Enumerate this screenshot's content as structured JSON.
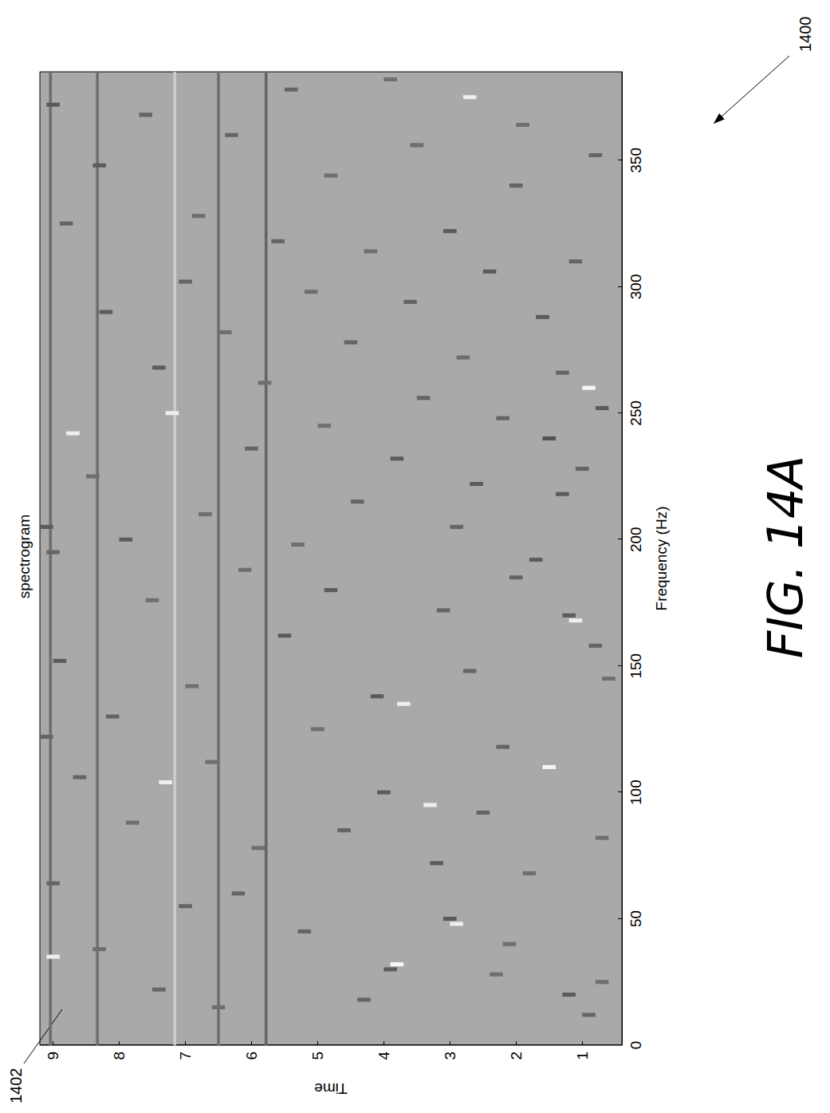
{
  "chart_data": {
    "type": "spectrogram",
    "title": "spectrogram",
    "x_label": "Frequency (Hz)",
    "y_label": "Time",
    "xlim": [
      0,
      385
    ],
    "xticks": [
      0,
      50,
      100,
      150,
      200,
      250,
      300,
      350
    ],
    "ylim": [
      0.4,
      9.2
    ],
    "yticks": [
      1,
      2,
      3,
      4,
      5,
      6,
      7,
      8,
      9
    ],
    "grid": false,
    "color_range": [
      0,
      1
    ],
    "cell_size": [
      1.6,
      0.2
    ],
    "cells": [
      [
        12,
        0.9,
        0.85
      ],
      [
        20,
        1.2,
        0.9
      ],
      [
        25,
        0.7,
        0.8
      ],
      [
        30,
        3.9,
        0.9
      ],
      [
        32,
        3.8,
        0.05
      ],
      [
        18,
        4.3,
        0.85
      ],
      [
        40,
        2.1,
        0.8
      ],
      [
        45,
        5.2,
        0.85
      ],
      [
        48,
        2.9,
        0.1
      ],
      [
        50,
        3.0,
        0.9
      ],
      [
        55,
        7.0,
        0.85
      ],
      [
        38,
        8.3,
        0.8
      ],
      [
        35,
        9.0,
        0.1
      ],
      [
        60,
        6.2,
        0.85
      ],
      [
        68,
        1.8,
        0.8
      ],
      [
        72,
        3.2,
        0.9
      ],
      [
        78,
        5.9,
        0.8
      ],
      [
        85,
        4.6,
        0.85
      ],
      [
        88,
        7.8,
        0.8
      ],
      [
        92,
        2.5,
        0.85
      ],
      [
        95,
        3.3,
        0.1
      ],
      [
        100,
        4.0,
        0.9
      ],
      [
        104,
        7.3,
        0.1
      ],
      [
        106,
        8.6,
        0.85
      ],
      [
        110,
        1.5,
        0.05
      ],
      [
        112,
        6.6,
        0.8
      ],
      [
        118,
        2.2,
        0.85
      ],
      [
        125,
        5.0,
        0.8
      ],
      [
        130,
        8.1,
        0.85
      ],
      [
        135,
        3.7,
        0.1
      ],
      [
        138,
        4.1,
        0.9
      ],
      [
        142,
        6.9,
        0.8
      ],
      [
        148,
        2.7,
        0.85
      ],
      [
        152,
        8.9,
        0.9
      ],
      [
        158,
        0.8,
        0.85
      ],
      [
        162,
        5.5,
        0.9
      ],
      [
        168,
        1.1,
        0.1
      ],
      [
        170,
        1.2,
        0.9
      ],
      [
        172,
        3.1,
        0.85
      ],
      [
        176,
        7.5,
        0.8
      ],
      [
        180,
        4.8,
        0.9
      ],
      [
        185,
        2.0,
        0.85
      ],
      [
        188,
        6.1,
        0.8
      ],
      [
        192,
        1.7,
        0.9
      ],
      [
        195,
        9.0,
        0.85
      ],
      [
        198,
        5.3,
        0.8
      ],
      [
        200,
        7.9,
        0.9
      ],
      [
        205,
        2.9,
        0.85
      ],
      [
        210,
        6.7,
        0.8
      ],
      [
        215,
        4.4,
        0.85
      ],
      [
        218,
        1.3,
        0.9
      ],
      [
        222,
        2.6,
        0.9
      ],
      [
        225,
        8.4,
        0.8
      ],
      [
        228,
        1.0,
        0.85
      ],
      [
        232,
        3.8,
        0.9
      ],
      [
        236,
        6.0,
        0.85
      ],
      [
        240,
        1.5,
        0.95
      ],
      [
        242,
        8.7,
        0.1
      ],
      [
        245,
        4.9,
        0.8
      ],
      [
        248,
        2.2,
        0.85
      ],
      [
        250,
        7.2,
        0.1
      ],
      [
        252,
        0.7,
        0.9
      ],
      [
        256,
        3.4,
        0.85
      ],
      [
        260,
        0.9,
        0.05
      ],
      [
        262,
        5.8,
        0.8
      ],
      [
        266,
        1.3,
        0.85
      ],
      [
        268,
        7.4,
        0.9
      ],
      [
        272,
        2.8,
        0.8
      ],
      [
        278,
        4.5,
        0.85
      ],
      [
        282,
        6.4,
        0.8
      ],
      [
        288,
        1.6,
        0.9
      ],
      [
        290,
        8.2,
        0.9
      ],
      [
        294,
        3.6,
        0.85
      ],
      [
        298,
        5.1,
        0.8
      ],
      [
        302,
        7.0,
        0.85
      ],
      [
        306,
        2.4,
        0.9
      ],
      [
        310,
        1.1,
        0.85
      ],
      [
        314,
        4.2,
        0.8
      ],
      [
        318,
        5.6,
        0.85
      ],
      [
        322,
        3.0,
        0.9
      ],
      [
        325,
        8.8,
        0.85
      ],
      [
        328,
        6.8,
        0.8
      ],
      [
        340,
        2.0,
        0.85
      ],
      [
        344,
        4.8,
        0.8
      ],
      [
        348,
        8.3,
        0.9
      ],
      [
        352,
        0.8,
        0.85
      ],
      [
        356,
        3.5,
        0.8
      ],
      [
        360,
        6.3,
        0.85
      ],
      [
        364,
        1.9,
        0.8
      ],
      [
        368,
        7.6,
        0.85
      ],
      [
        372,
        9.0,
        0.9
      ],
      [
        375,
        2.7,
        0.1
      ],
      [
        378,
        5.4,
        0.85
      ],
      [
        382,
        3.9,
        0.8
      ],
      [
        15,
        6.5,
        0.8
      ],
      [
        22,
        7.4,
        0.85
      ],
      [
        28,
        2.3,
        0.8
      ],
      [
        64,
        9.0,
        0.85
      ],
      [
        82,
        0.7,
        0.8
      ],
      [
        122,
        9.1,
        0.85
      ],
      [
        145,
        0.6,
        0.8
      ],
      [
        205,
        9.1,
        0.9
      ]
    ],
    "events": [
      {
        "time": 9.04,
        "level": 0.8
      },
      {
        "time": 8.33,
        "level": 0.8
      },
      {
        "time": 7.16,
        "level": 0.3
      },
      {
        "time": 6.5,
        "level": 0.8
      },
      {
        "time": 5.78,
        "level": 0.85
      }
    ],
    "annotations": [
      "1402",
      "1400"
    ],
    "caption": "FIG. 14A"
  }
}
